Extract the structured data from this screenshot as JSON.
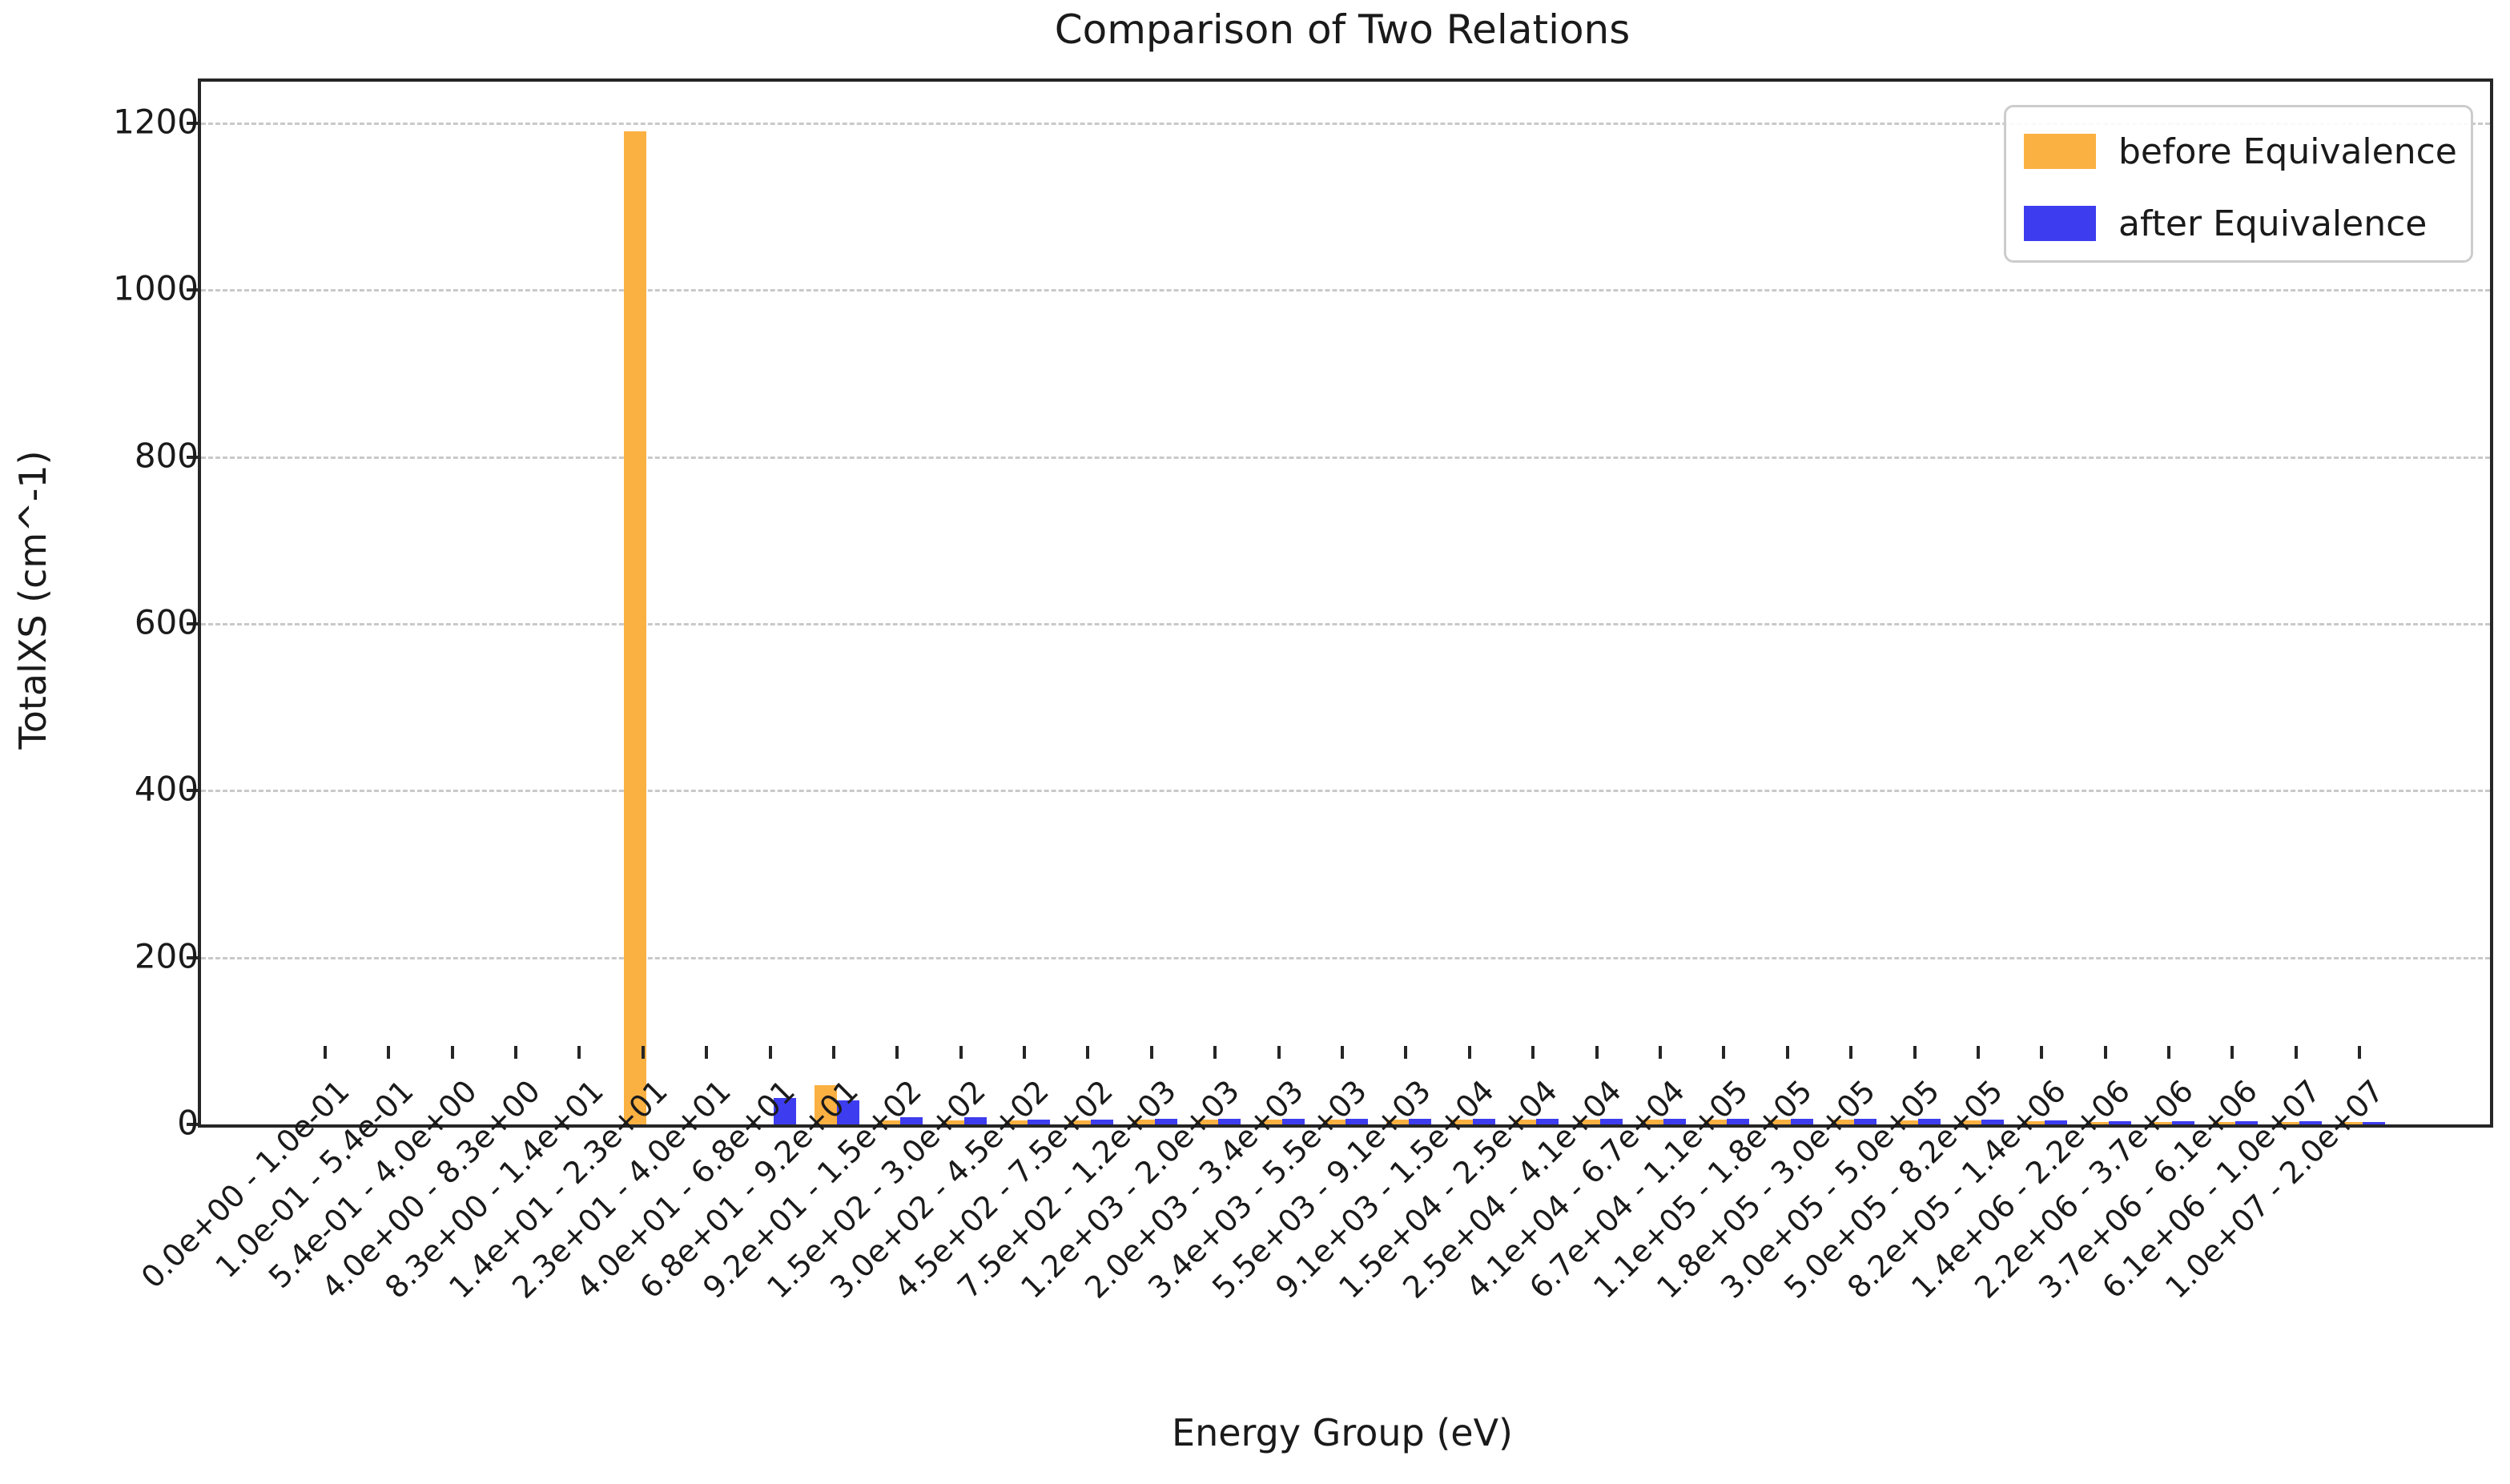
{
  "chart_data": {
    "type": "bar",
    "title": "Comparison of Two Relations",
    "xlabel": "Energy Group (eV)",
    "ylabel": "TotalXS (cm^-1)",
    "categories": [
      "0.0e+00 - 1.0e-01",
      "1.0e-01 - 5.4e-01",
      "5.4e-01 - 4.0e+00",
      "4.0e+00 - 8.3e+00",
      "8.3e+00 - 1.4e+01",
      "1.4e+01 - 2.3e+01",
      "2.3e+01 - 4.0e+01",
      "4.0e+01 - 6.8e+01",
      "6.8e+01 - 9.2e+01",
      "9.2e+01 - 1.5e+02",
      "1.5e+02 - 3.0e+02",
      "3.0e+02 - 4.5e+02",
      "4.5e+02 - 7.5e+02",
      "7.5e+02 - 1.2e+03",
      "1.2e+03 - 2.0e+03",
      "2.0e+03 - 3.4e+03",
      "3.4e+03 - 5.5e+03",
      "5.5e+03 - 9.1e+03",
      "9.1e+03 - 1.5e+04",
      "1.5e+04 - 2.5e+04",
      "2.5e+04 - 4.1e+04",
      "4.1e+04 - 6.7e+04",
      "6.7e+04 - 1.1e+05",
      "1.1e+05 - 1.8e+05",
      "1.8e+05 - 3.0e+05",
      "3.0e+05 - 5.0e+05",
      "5.0e+05 - 8.2e+05",
      "8.2e+05 - 1.4e+06",
      "1.4e+06 - 2.2e+06",
      "2.2e+06 - 3.7e+06",
      "3.7e+06 - 6.1e+06",
      "6.1e+06 - 1.0e+07",
      "1.0e+07 - 2.0e+07"
    ],
    "series": [
      {
        "name": "before Equivalence",
        "color": "#fbb142",
        "values": [
          0,
          0,
          0,
          0,
          0,
          1190,
          0,
          0,
          47,
          5,
          5,
          5,
          5,
          6,
          6,
          6,
          6,
          6,
          6,
          6,
          6,
          6,
          6,
          6,
          6,
          5,
          5,
          4,
          3,
          3,
          3,
          3,
          3
        ]
      },
      {
        "name": "after Equivalence",
        "color": "#3d3def",
        "values": [
          0,
          0,
          0,
          0,
          0,
          0,
          0,
          32,
          29,
          9,
          9,
          6,
          6,
          7,
          7,
          7,
          7,
          7,
          7,
          7,
          7,
          7,
          7,
          7,
          7,
          7,
          6,
          5,
          4,
          4,
          4,
          4,
          3
        ]
      }
    ],
    "ylim": [
      0,
      1250
    ],
    "yticks": [
      0,
      200,
      400,
      600,
      800,
      1000,
      1200
    ],
    "grid": "horizontal-dashed",
    "grid_color": "#c9c9c9",
    "spine_color": "#262626",
    "legend_position": "upper right",
    "bar_width_fraction": 0.35,
    "x_tick_rotation_deg": 45
  }
}
